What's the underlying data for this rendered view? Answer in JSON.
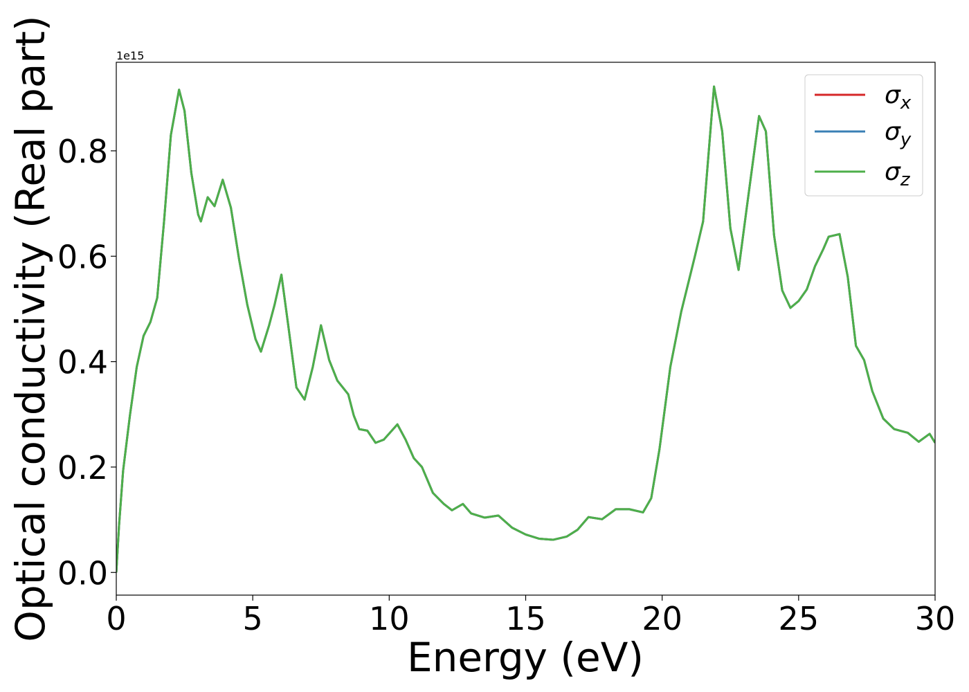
{
  "chart_data": {
    "type": "line",
    "xlabel": "Energy (eV)",
    "ylabel": "Optical conductivity (Real part)",
    "y_offset_label": "1e15",
    "x": [
      0,
      0.1,
      0.25,
      0.5,
      0.75,
      1.0,
      1.25,
      1.5,
      1.75,
      2.0,
      2.3,
      2.5,
      2.75,
      3.0,
      3.1,
      3.35,
      3.6,
      3.9,
      4.2,
      4.5,
      4.8,
      5.1,
      5.3,
      5.6,
      5.8,
      6.05,
      6.3,
      6.6,
      6.9,
      7.2,
      7.5,
      7.8,
      8.1,
      8.5,
      8.7,
      8.9,
      9.2,
      9.5,
      9.8,
      10.3,
      10.6,
      10.9,
      11.2,
      11.6,
      12.0,
      12.3,
      12.7,
      13.0,
      13.5,
      14.0,
      14.5,
      15.0,
      15.5,
      16.0,
      16.5,
      16.9,
      17.3,
      17.8,
      18.3,
      18.8,
      19.3,
      19.6,
      19.9,
      20.3,
      20.7,
      21.2,
      21.5,
      21.9,
      22.2,
      22.5,
      22.8,
      23.1,
      23.55,
      23.8,
      24.1,
      24.4,
      24.7,
      25.0,
      25.3,
      25.6,
      25.9,
      26.1,
      26.5,
      26.8,
      27.1,
      27.4,
      27.7,
      28.1,
      28.5,
      29.0,
      29.4,
      29.8,
      30.0
    ],
    "series": [
      {
        "name": "σx",
        "color": "#d62728",
        "values": [
          0,
          0.088,
          0.193,
          0.298,
          0.39,
          0.449,
          0.475,
          0.521,
          0.666,
          0.83,
          0.916,
          0.876,
          0.758,
          0.679,
          0.666,
          0.712,
          0.695,
          0.745,
          0.692,
          0.594,
          0.508,
          0.443,
          0.419,
          0.469,
          0.508,
          0.565,
          0.469,
          0.351,
          0.328,
          0.39,
          0.469,
          0.403,
          0.364,
          0.338,
          0.298,
          0.272,
          0.269,
          0.246,
          0.252,
          0.281,
          0.252,
          0.217,
          0.2,
          0.151,
          0.13,
          0.118,
          0.13,
          0.112,
          0.104,
          0.108,
          0.085,
          0.072,
          0.064,
          0.062,
          0.068,
          0.081,
          0.105,
          0.101,
          0.12,
          0.12,
          0.114,
          0.141,
          0.233,
          0.39,
          0.495,
          0.6,
          0.666,
          0.922,
          0.837,
          0.653,
          0.574,
          0.692,
          0.866,
          0.837,
          0.64,
          0.535,
          0.502,
          0.515,
          0.537,
          0.581,
          0.613,
          0.637,
          0.642,
          0.561,
          0.43,
          0.403,
          0.344,
          0.292,
          0.272,
          0.265,
          0.248,
          0.263,
          0.246
        ]
      },
      {
        "name": "σy",
        "color": "#3a7fb5",
        "values": [
          0,
          0.088,
          0.193,
          0.298,
          0.39,
          0.449,
          0.475,
          0.521,
          0.666,
          0.83,
          0.916,
          0.876,
          0.758,
          0.679,
          0.666,
          0.712,
          0.695,
          0.745,
          0.692,
          0.594,
          0.508,
          0.443,
          0.419,
          0.469,
          0.508,
          0.565,
          0.469,
          0.351,
          0.328,
          0.39,
          0.469,
          0.403,
          0.364,
          0.338,
          0.298,
          0.272,
          0.269,
          0.246,
          0.252,
          0.281,
          0.252,
          0.217,
          0.2,
          0.151,
          0.13,
          0.118,
          0.13,
          0.112,
          0.104,
          0.108,
          0.085,
          0.072,
          0.064,
          0.062,
          0.068,
          0.081,
          0.105,
          0.101,
          0.12,
          0.12,
          0.114,
          0.141,
          0.233,
          0.39,
          0.495,
          0.6,
          0.666,
          0.922,
          0.837,
          0.653,
          0.574,
          0.692,
          0.866,
          0.837,
          0.64,
          0.535,
          0.502,
          0.515,
          0.537,
          0.581,
          0.613,
          0.637,
          0.642,
          0.561,
          0.43,
          0.403,
          0.344,
          0.292,
          0.272,
          0.265,
          0.248,
          0.263,
          0.246
        ]
      },
      {
        "name": "σz",
        "color": "#4daf4a",
        "values": [
          0,
          0.088,
          0.193,
          0.298,
          0.39,
          0.449,
          0.475,
          0.521,
          0.666,
          0.83,
          0.916,
          0.876,
          0.758,
          0.679,
          0.666,
          0.712,
          0.695,
          0.745,
          0.692,
          0.594,
          0.508,
          0.443,
          0.419,
          0.469,
          0.508,
          0.565,
          0.469,
          0.351,
          0.328,
          0.39,
          0.469,
          0.403,
          0.364,
          0.338,
          0.298,
          0.272,
          0.269,
          0.246,
          0.252,
          0.281,
          0.252,
          0.217,
          0.2,
          0.151,
          0.13,
          0.118,
          0.13,
          0.112,
          0.104,
          0.108,
          0.085,
          0.072,
          0.064,
          0.062,
          0.068,
          0.081,
          0.105,
          0.101,
          0.12,
          0.12,
          0.114,
          0.141,
          0.233,
          0.39,
          0.495,
          0.6,
          0.666,
          0.922,
          0.837,
          0.653,
          0.574,
          0.692,
          0.866,
          0.837,
          0.64,
          0.535,
          0.502,
          0.515,
          0.537,
          0.581,
          0.613,
          0.637,
          0.642,
          0.561,
          0.43,
          0.403,
          0.344,
          0.292,
          0.272,
          0.265,
          0.248,
          0.263,
          0.246
        ]
      }
    ],
    "xlim": [
      0,
      30
    ],
    "xticks": [
      0,
      5,
      10,
      15,
      20,
      25,
      30
    ],
    "ylim": [
      -0.043,
      0.968
    ],
    "yticks": [
      {
        "value": 0,
        "label": "0.0"
      },
      0.2,
      0.4,
      0.6,
      0.8
    ],
    "grid": false,
    "legend": "upper right"
  }
}
